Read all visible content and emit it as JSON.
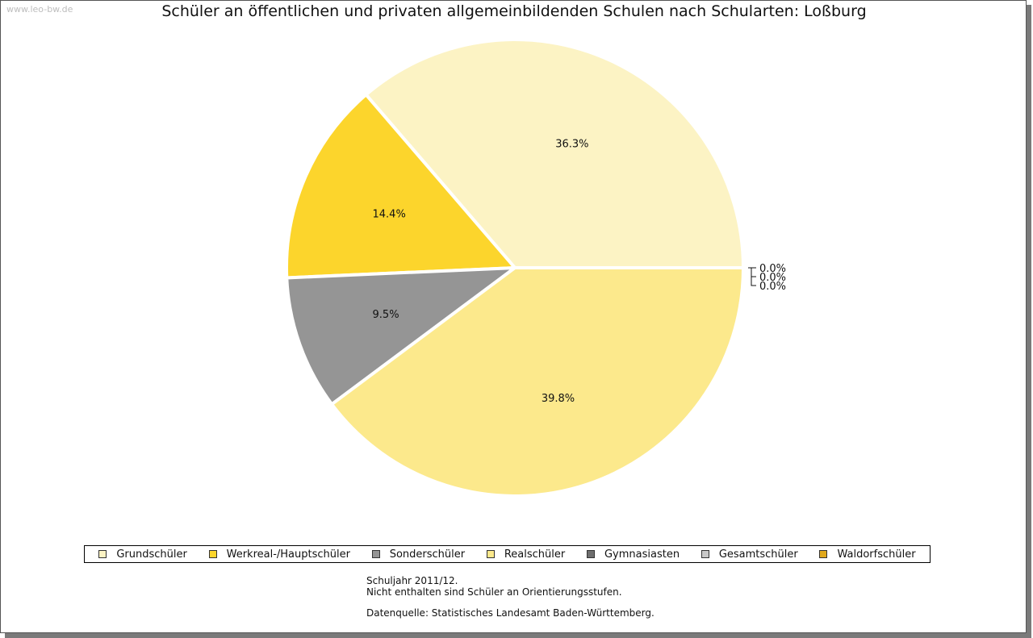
{
  "watermark": "www.leo-bw.de",
  "chart_data": {
    "type": "pie",
    "title": "Schüler an öffentlichen und privaten allgemeinbildenden Schulen nach Schularten: Loßburg",
    "slices": [
      {
        "name": "Grundschüler",
        "value": 36.3,
        "label": "36.3%",
        "color": "#fcf3c4"
      },
      {
        "name": "Werkreal-/Hauptschüler",
        "value": 14.4,
        "label": "14.4%",
        "color": "#fcd52c"
      },
      {
        "name": "Sonderschüler",
        "value": 9.5,
        "label": "9.5%",
        "color": "#959595"
      },
      {
        "name": "Realschüler",
        "value": 39.8,
        "label": "39.8%",
        "color": "#fce98c"
      },
      {
        "name": "Gymnasiasten",
        "value": 0.0,
        "label": "0.0%",
        "color": "#6e6e6e"
      },
      {
        "name": "Gesamtschüler",
        "value": 0.0,
        "label": "0.0%",
        "color": "#c8c8c8"
      },
      {
        "name": "Waldorfschüler",
        "value": 0.0,
        "label": "0.0%",
        "color": "#e0a81c"
      }
    ],
    "legend_placement": "bottom"
  },
  "notes": {
    "line1": "Schuljahr 2011/12.",
    "line2": "Nicht enthalten sind Schüler an Orientierungsstufen.",
    "line3": "Datenquelle: Statistisches Landesamt Baden-Württemberg."
  }
}
